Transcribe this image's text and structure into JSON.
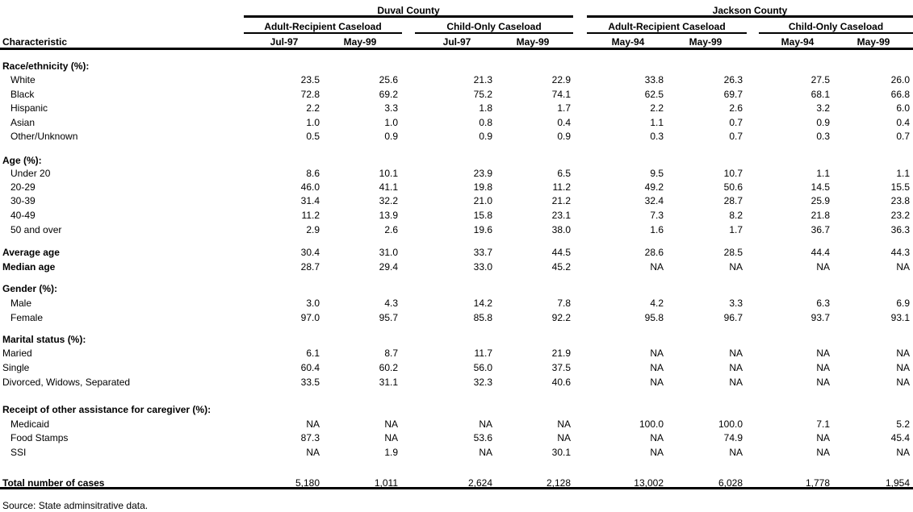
{
  "header": {
    "characteristic_label": "Characteristic",
    "counties": [
      {
        "name": "Duval County",
        "groups": [
          {
            "name": "Adult-Recipient Caseload",
            "dates": [
              "Jul-97",
              "May-99"
            ]
          },
          {
            "name": "Child-Only Caseload",
            "dates": [
              "Jul-97",
              "May-99"
            ]
          }
        ]
      },
      {
        "name": "Jackson County",
        "groups": [
          {
            "name": "Adult-Recipient Caseload",
            "dates": [
              "May-94",
              "May-99"
            ]
          },
          {
            "name": "Child-Only Caseload",
            "dates": [
              "May-94",
              "May-99"
            ]
          }
        ]
      }
    ]
  },
  "rows": [
    {
      "label": "Race/ethnicity (%):",
      "style": "section"
    },
    {
      "label": "White",
      "style": "item",
      "values": [
        "23.5",
        "25.6",
        "21.3",
        "22.9",
        "33.8",
        "26.3",
        "27.5",
        "26.0"
      ]
    },
    {
      "label": "Black",
      "style": "item",
      "values": [
        "72.8",
        "69.2",
        "75.2",
        "74.1",
        "62.5",
        "69.7",
        "68.1",
        "66.8"
      ]
    },
    {
      "label": "Hispanic",
      "style": "item",
      "values": [
        "2.2",
        "3.3",
        "1.8",
        "1.7",
        "2.2",
        "2.6",
        "3.2",
        "6.0"
      ]
    },
    {
      "label": "Asian",
      "style": "item",
      "values": [
        "1.0",
        "1.0",
        "0.8",
        "0.4",
        "1.1",
        "0.7",
        "0.9",
        "0.4"
      ]
    },
    {
      "label": "Other/Unknown",
      "style": "item",
      "values": [
        "0.5",
        "0.9",
        "0.9",
        "0.9",
        "0.3",
        "0.7",
        "0.3",
        "0.7"
      ]
    },
    {
      "label": "Age (%):",
      "style": "section"
    },
    {
      "label": "Under 20",
      "style": "item",
      "values": [
        "8.6",
        "10.1",
        "23.9",
        "6.5",
        "9.5",
        "10.7",
        "1.1",
        "1.1"
      ]
    },
    {
      "label": "20-29",
      "style": "item",
      "values": [
        "46.0",
        "41.1",
        "19.8",
        "11.2",
        "49.2",
        "50.6",
        "14.5",
        "15.5"
      ]
    },
    {
      "label": "30-39",
      "style": "item",
      "values": [
        "31.4",
        "32.2",
        "21.0",
        "21.2",
        "32.4",
        "28.7",
        "25.9",
        "23.8"
      ]
    },
    {
      "label": "40-49",
      "style": "item",
      "values": [
        "11.2",
        "13.9",
        "15.8",
        "23.1",
        "7.3",
        "8.2",
        "21.8",
        "23.2"
      ]
    },
    {
      "label": "50 and over",
      "style": "item",
      "values": [
        "2.9",
        "2.6",
        "19.6",
        "38.0",
        "1.6",
        "1.7",
        "36.7",
        "36.3"
      ]
    },
    {
      "label": "Average age",
      "style": "bold",
      "values": [
        "30.4",
        "31.0",
        "33.7",
        "44.5",
        "28.6",
        "28.5",
        "44.4",
        "44.3"
      ]
    },
    {
      "label": "Median age",
      "style": "bold",
      "values": [
        "28.7",
        "29.4",
        "33.0",
        "45.2",
        "NA",
        "NA",
        "NA",
        "NA"
      ]
    },
    {
      "label": "Gender (%):",
      "style": "section"
    },
    {
      "label": "Male",
      "style": "item",
      "values": [
        "3.0",
        "4.3",
        "14.2",
        "7.8",
        "4.2",
        "3.3",
        "6.3",
        "6.9"
      ]
    },
    {
      "label": "Female",
      "style": "item",
      "values": [
        "97.0",
        "95.7",
        "85.8",
        "92.2",
        "95.8",
        "96.7",
        "93.7",
        "93.1"
      ]
    },
    {
      "label": "Marital status (%):",
      "style": "section"
    },
    {
      "label": "Maried",
      "style": "plain",
      "values": [
        "6.1",
        "8.7",
        "11.7",
        "21.9",
        "NA",
        "NA",
        "NA",
        "NA"
      ]
    },
    {
      "label": "Single",
      "style": "plain",
      "values": [
        "60.4",
        "60.2",
        "56.0",
        "37.5",
        "NA",
        "NA",
        "NA",
        "NA"
      ]
    },
    {
      "label": "Divorced, Widows, Separated",
      "style": "plain",
      "values": [
        "33.5",
        "31.1",
        "32.3",
        "40.6",
        "NA",
        "NA",
        "NA",
        "NA"
      ]
    },
    {
      "label": "Receipt of other assistance for caregiver (%):",
      "style": "section"
    },
    {
      "label": "Medicaid",
      "style": "item",
      "values": [
        "NA",
        "NA",
        "NA",
        "NA",
        "100.0",
        "100.0",
        "7.1",
        "5.2"
      ]
    },
    {
      "label": "Food Stamps",
      "style": "item",
      "values": [
        "87.3",
        "NA",
        "53.6",
        "NA",
        "NA",
        "74.9",
        "NA",
        "45.4"
      ]
    },
    {
      "label": "SSI",
      "style": "item",
      "values": [
        "NA",
        "1.9",
        "NA",
        "30.1",
        "NA",
        "NA",
        "NA",
        "NA"
      ]
    },
    {
      "label": "Total number of cases",
      "style": "bold",
      "values": [
        "5,180",
        "1,011",
        "2,624",
        "2,128",
        "13,002",
        "6,028",
        "1,778",
        "1,954"
      ]
    }
  ],
  "footer": {
    "source": "Source: State adminsitrative data."
  }
}
